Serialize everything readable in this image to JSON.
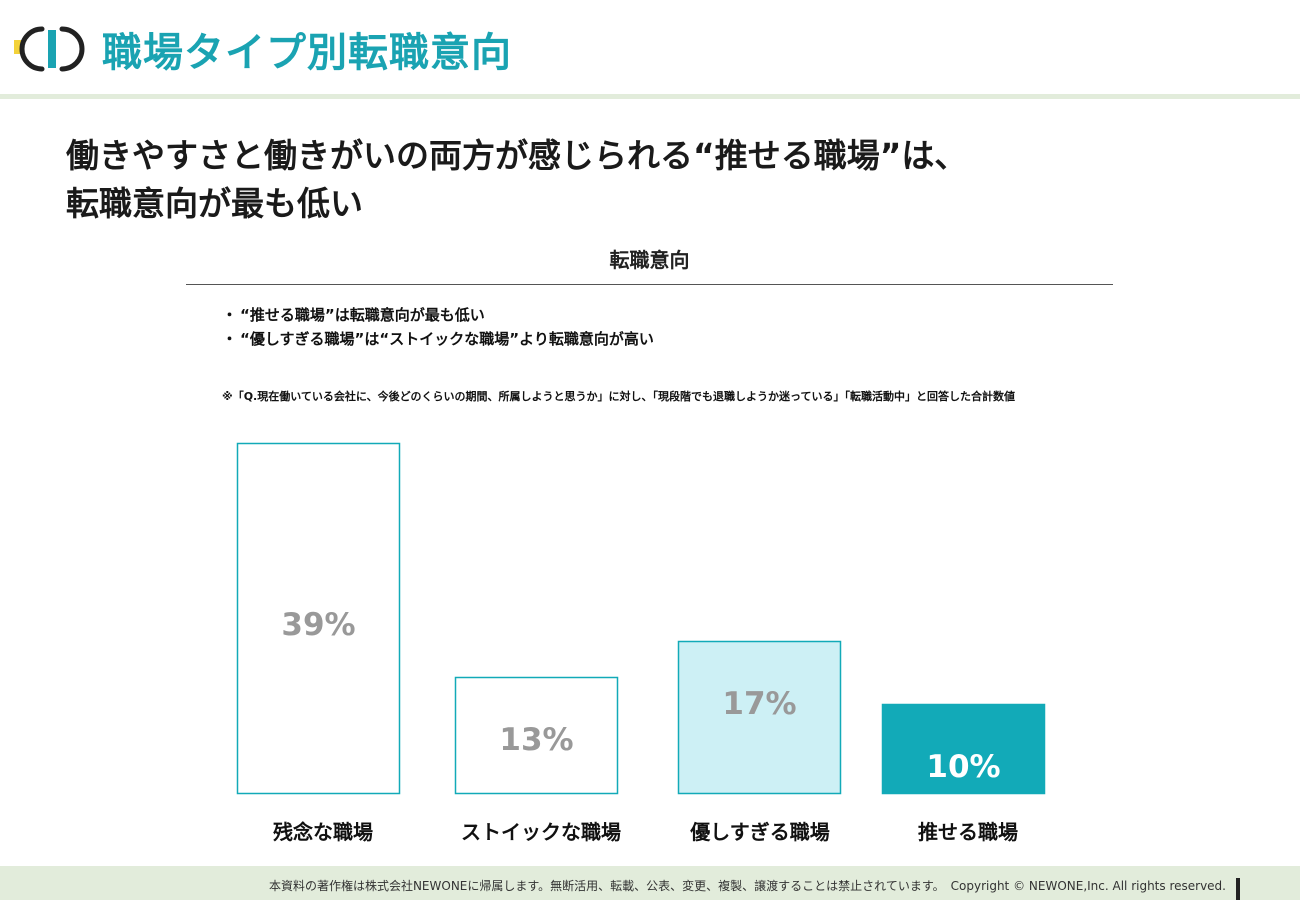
{
  "header": {
    "title": "職場タイプ別転職意向"
  },
  "headline": {
    "line1": "働きやすさと働きがいの両方が感じられる“推せる職場”は、",
    "line2": "転職意向が最も低い"
  },
  "bullets": [
    "“推せる職場”は転職意向が最も低い",
    "“優しすぎる職場”は“ストイックな職場”より転職意向が高い"
  ],
  "bullet_marker": "・",
  "note": "※「Q.現在働いている会社に、今後どのくらいの期間、所属しようと思うか」に対し、「現段階でも退職しようか迷っている」「転職活動中」と回答した合計数値",
  "chart_data": {
    "type": "bar",
    "title": "転職意向",
    "categories": [
      "残念な職場",
      "ストイックな職場",
      "優しすぎる職場",
      "推せる職場"
    ],
    "values": [
      39,
      13,
      17,
      10
    ],
    "labels": [
      "39%",
      "13%",
      "17%",
      "10%"
    ],
    "unit": "%",
    "ylim": [
      0,
      40
    ],
    "grid": false,
    "fill_colors": [
      "#ffffff",
      "#ffffff",
      "#cdf0f5",
      "#12aab8"
    ],
    "border_color": "#12aab8",
    "label_colors": [
      "#999999",
      "#999999",
      "#999999",
      "#ffffff"
    ]
  },
  "footer": {
    "text": "本資料の著作権は株式会社NEWONEに帰属します。無断活用、転載、公表、変更、複製、譲渡することは禁止されています。　Copyright © NEWONE,Inc.  All rights reserved."
  },
  "colors": {
    "brand": "#1aa3b2",
    "accent_light": "#e2ecdb"
  },
  "icons": {
    "logo": "newone-logo-icon"
  }
}
